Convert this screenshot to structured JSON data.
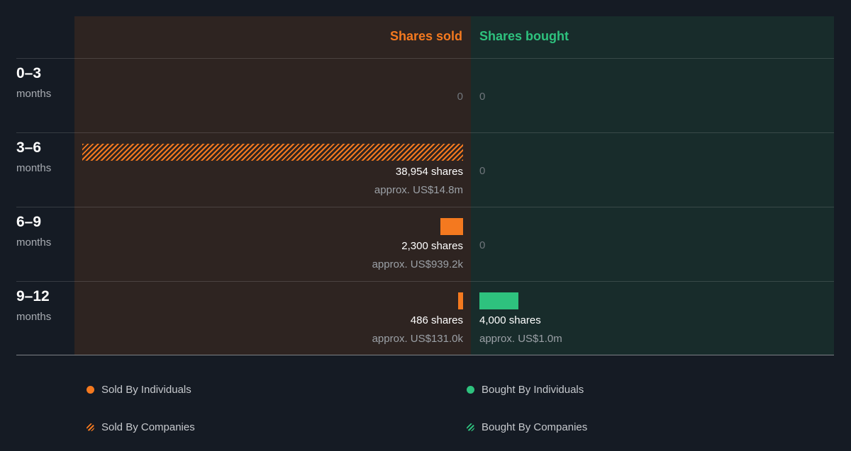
{
  "chart_data": {
    "type": "bar",
    "orientation": "horizontal-diverging",
    "columns": {
      "sold": "Shares sold",
      "bought": "Shares bought"
    },
    "categories": [
      {
        "range": "0–3",
        "unit": "months"
      },
      {
        "range": "3–6",
        "unit": "months"
      },
      {
        "range": "6–9",
        "unit": "months"
      },
      {
        "range": "9–12",
        "unit": "months"
      }
    ],
    "scale_max": 38954,
    "sold": [
      {
        "individuals": 0,
        "companies": 0,
        "shares_label": "",
        "approx_label": "",
        "zero_label": "0"
      },
      {
        "individuals": 0,
        "companies": 38954,
        "shares_label": "38,954 shares",
        "approx_label": "approx. US$14.8m",
        "zero_label": ""
      },
      {
        "individuals": 2300,
        "companies": 0,
        "shares_label": "2,300 shares",
        "approx_label": "approx. US$939.2k",
        "zero_label": ""
      },
      {
        "individuals": 486,
        "companies": 0,
        "shares_label": "486 shares",
        "approx_label": "approx. US$131.0k",
        "zero_label": ""
      }
    ],
    "bought": [
      {
        "individuals": 0,
        "companies": 0,
        "shares_label": "",
        "approx_label": "",
        "zero_label": "0"
      },
      {
        "individuals": 0,
        "companies": 0,
        "shares_label": "",
        "approx_label": "",
        "zero_label": "0"
      },
      {
        "individuals": 0,
        "companies": 0,
        "shares_label": "",
        "approx_label": "",
        "zero_label": "0"
      },
      {
        "individuals": 4000,
        "companies": 0,
        "shares_label": "4,000 shares",
        "approx_label": "approx. US$1.0m",
        "zero_label": ""
      }
    ],
    "legend": {
      "sold_individuals": "Sold By Individuals",
      "sold_companies": "Sold By Companies",
      "bought_individuals": "Bought By Individuals",
      "bought_companies": "Bought By Companies"
    },
    "colors": {
      "sold": "#f4791f",
      "bought": "#2ec27e"
    }
  }
}
